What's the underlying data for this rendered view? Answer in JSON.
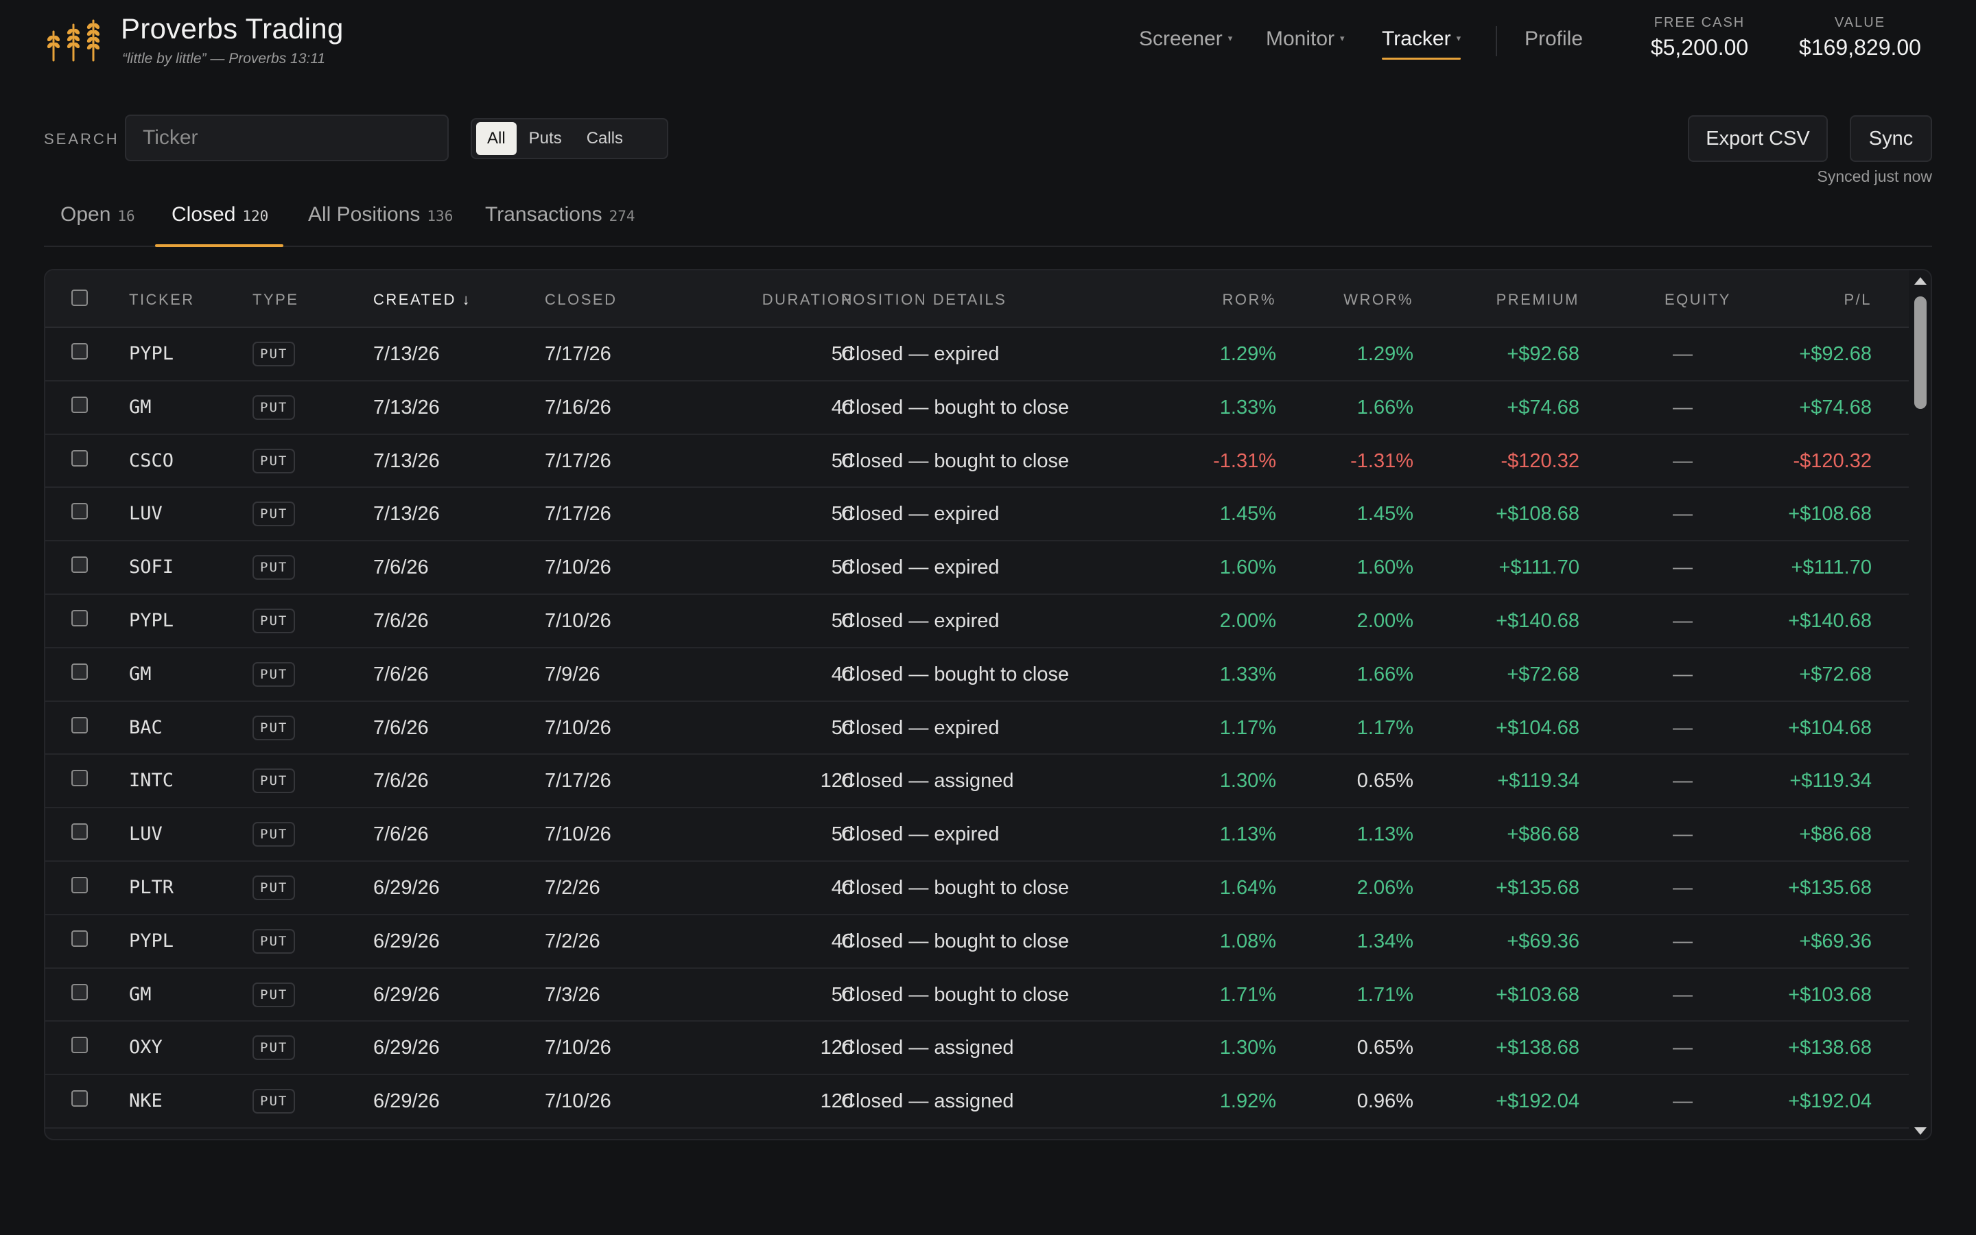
{
  "brand": {
    "title": "Proverbs Trading",
    "subtitle": "“little by little” — Proverbs 13:11",
    "accent": "#e8a33a"
  },
  "nav": {
    "items": [
      {
        "label": "Screener",
        "has_caret": true
      },
      {
        "label": "Monitor",
        "has_caret": true
      },
      {
        "label": "Tracker",
        "has_caret": true,
        "active": true
      },
      {
        "label": "Profile",
        "has_caret": false
      }
    ],
    "caret": "▾"
  },
  "stats": {
    "free_cash_label": "FREE CASH",
    "free_cash_value": "$5,200.00",
    "value_label": "VALUE",
    "value_value": "$169,829.00"
  },
  "toolbar": {
    "search_label": "SEARCH",
    "search_placeholder": "Ticker",
    "search_value": "",
    "filters": [
      {
        "label": "All",
        "active": true
      },
      {
        "label": "Puts",
        "active": false
      },
      {
        "label": "Calls",
        "active": false
      }
    ],
    "export_label": "Export CSV",
    "sync_label": "Sync",
    "sync_status": "Synced just now"
  },
  "tabs": [
    {
      "label": "Open",
      "count": "16",
      "active": false
    },
    {
      "label": "Closed",
      "count": "120",
      "active": true
    },
    {
      "label": "All Positions",
      "count": "136",
      "active": false
    },
    {
      "label": "Transactions",
      "count": "274",
      "active": false
    }
  ],
  "table": {
    "columns": {
      "ticker": "TICKER",
      "type": "TYPE",
      "created": "CREATED",
      "sort_indicator": "↓",
      "closed": "CLOSED",
      "duration": "DURATION",
      "details": "POSITION DETAILS",
      "ror": "ROR%",
      "wror": "WROR%",
      "premium": "PREMIUM",
      "equity": "EQUITY",
      "pl": "P/L"
    },
    "colors": {
      "positive": "#4cc38a",
      "negative": "#e8665f"
    },
    "rows": [
      {
        "ticker": "PYPL",
        "type": "PUT",
        "created": "7/13/26",
        "closed": "7/17/26",
        "duration": "5d",
        "details": "Closed — expired",
        "ror": "1.29%",
        "wror": "1.29%",
        "premium": "+$92.68",
        "equity": "—",
        "pl": "+$92.68",
        "ror_tone": "pos",
        "wror_tone": "pos",
        "premium_tone": "pos",
        "pl_tone": "pos"
      },
      {
        "ticker": "GM",
        "type": "PUT",
        "created": "7/13/26",
        "closed": "7/16/26",
        "duration": "4d",
        "details": "Closed — bought to close",
        "ror": "1.33%",
        "wror": "1.66%",
        "premium": "+$74.68",
        "equity": "—",
        "pl": "+$74.68",
        "ror_tone": "pos",
        "wror_tone": "pos",
        "premium_tone": "pos",
        "pl_tone": "pos"
      },
      {
        "ticker": "CSCO",
        "type": "PUT",
        "created": "7/13/26",
        "closed": "7/17/26",
        "duration": "5d",
        "details": "Closed — bought to close",
        "ror": "-1.31%",
        "wror": "-1.31%",
        "premium": "-$120.32",
        "equity": "—",
        "pl": "-$120.32",
        "ror_tone": "neg",
        "wror_tone": "neg",
        "premium_tone": "neg",
        "pl_tone": "neg"
      },
      {
        "ticker": "LUV",
        "type": "PUT",
        "created": "7/13/26",
        "closed": "7/17/26",
        "duration": "5d",
        "details": "Closed — expired",
        "ror": "1.45%",
        "wror": "1.45%",
        "premium": "+$108.68",
        "equity": "—",
        "pl": "+$108.68",
        "ror_tone": "pos",
        "wror_tone": "pos",
        "premium_tone": "pos",
        "pl_tone": "pos"
      },
      {
        "ticker": "SOFI",
        "type": "PUT",
        "created": "7/6/26",
        "closed": "7/10/26",
        "duration": "5d",
        "details": "Closed — expired",
        "ror": "1.60%",
        "wror": "1.60%",
        "premium": "+$111.70",
        "equity": "—",
        "pl": "+$111.70",
        "ror_tone": "pos",
        "wror_tone": "pos",
        "premium_tone": "pos",
        "pl_tone": "pos"
      },
      {
        "ticker": "PYPL",
        "type": "PUT",
        "created": "7/6/26",
        "closed": "7/10/26",
        "duration": "5d",
        "details": "Closed — expired",
        "ror": "2.00%",
        "wror": "2.00%",
        "premium": "+$140.68",
        "equity": "—",
        "pl": "+$140.68",
        "ror_tone": "pos",
        "wror_tone": "pos",
        "premium_tone": "pos",
        "pl_tone": "pos"
      },
      {
        "ticker": "GM",
        "type": "PUT",
        "created": "7/6/26",
        "closed": "7/9/26",
        "duration": "4d",
        "details": "Closed — bought to close",
        "ror": "1.33%",
        "wror": "1.66%",
        "premium": "+$72.68",
        "equity": "—",
        "pl": "+$72.68",
        "ror_tone": "pos",
        "wror_tone": "pos",
        "premium_tone": "pos",
        "pl_tone": "pos"
      },
      {
        "ticker": "BAC",
        "type": "PUT",
        "created": "7/6/26",
        "closed": "7/10/26",
        "duration": "5d",
        "details": "Closed — expired",
        "ror": "1.17%",
        "wror": "1.17%",
        "premium": "+$104.68",
        "equity": "—",
        "pl": "+$104.68",
        "ror_tone": "pos",
        "wror_tone": "pos",
        "premium_tone": "pos",
        "pl_tone": "pos"
      },
      {
        "ticker": "INTC",
        "type": "PUT",
        "created": "7/6/26",
        "closed": "7/17/26",
        "duration": "12d",
        "details": "Closed — assigned",
        "ror": "1.30%",
        "wror": "0.65%",
        "premium": "+$119.34",
        "equity": "—",
        "pl": "+$119.34",
        "ror_tone": "pos",
        "wror_tone": "neu",
        "premium_tone": "pos",
        "pl_tone": "pos"
      },
      {
        "ticker": "LUV",
        "type": "PUT",
        "created": "7/6/26",
        "closed": "7/10/26",
        "duration": "5d",
        "details": "Closed — expired",
        "ror": "1.13%",
        "wror": "1.13%",
        "premium": "+$86.68",
        "equity": "—",
        "pl": "+$86.68",
        "ror_tone": "pos",
        "wror_tone": "pos",
        "premium_tone": "pos",
        "pl_tone": "pos"
      },
      {
        "ticker": "PLTR",
        "type": "PUT",
        "created": "6/29/26",
        "closed": "7/2/26",
        "duration": "4d",
        "details": "Closed — bought to close",
        "ror": "1.64%",
        "wror": "2.06%",
        "premium": "+$135.68",
        "equity": "—",
        "pl": "+$135.68",
        "ror_tone": "pos",
        "wror_tone": "pos",
        "premium_tone": "pos",
        "pl_tone": "pos"
      },
      {
        "ticker": "PYPL",
        "type": "PUT",
        "created": "6/29/26",
        "closed": "7/2/26",
        "duration": "4d",
        "details": "Closed — bought to close",
        "ror": "1.08%",
        "wror": "1.34%",
        "premium": "+$69.36",
        "equity": "—",
        "pl": "+$69.36",
        "ror_tone": "pos",
        "wror_tone": "pos",
        "premium_tone": "pos",
        "pl_tone": "pos"
      },
      {
        "ticker": "GM",
        "type": "PUT",
        "created": "6/29/26",
        "closed": "7/3/26",
        "duration": "5d",
        "details": "Closed — bought to close",
        "ror": "1.71%",
        "wror": "1.71%",
        "premium": "+$103.68",
        "equity": "—",
        "pl": "+$103.68",
        "ror_tone": "pos",
        "wror_tone": "pos",
        "premium_tone": "pos",
        "pl_tone": "pos"
      },
      {
        "ticker": "OXY",
        "type": "PUT",
        "created": "6/29/26",
        "closed": "7/10/26",
        "duration": "12d",
        "details": "Closed — assigned",
        "ror": "1.30%",
        "wror": "0.65%",
        "premium": "+$138.68",
        "equity": "—",
        "pl": "+$138.68",
        "ror_tone": "pos",
        "wror_tone": "neu",
        "premium_tone": "pos",
        "pl_tone": "pos"
      },
      {
        "ticker": "NKE",
        "type": "PUT",
        "created": "6/29/26",
        "closed": "7/10/26",
        "duration": "12d",
        "details": "Closed — assigned",
        "ror": "1.92%",
        "wror": "0.96%",
        "premium": "+$192.04",
        "equity": "—",
        "pl": "+$192.04",
        "ror_tone": "pos",
        "wror_tone": "neu",
        "premium_tone": "pos",
        "pl_tone": "pos"
      }
    ]
  },
  "icons": {
    "logo": "wheat-stalks-icon",
    "checkbox": "checkbox-icon",
    "scroll_up": "scroll-up-arrow-icon",
    "scroll_down": "scroll-down-arrow-icon"
  }
}
